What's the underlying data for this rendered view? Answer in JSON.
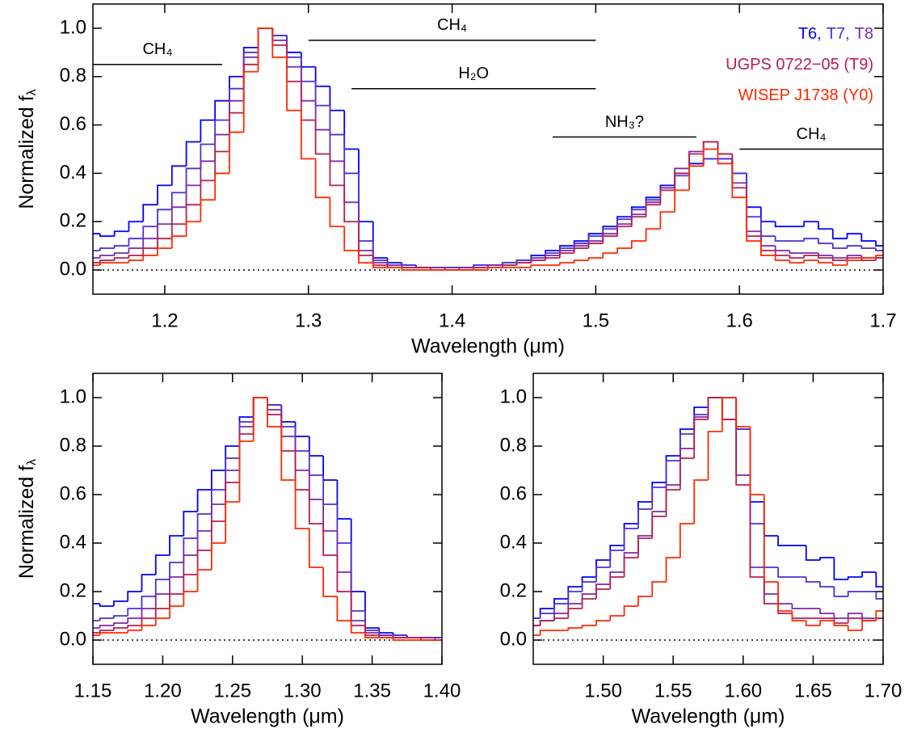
{
  "chart_data": [
    {
      "type": "line",
      "drawstyle": "steps-mid",
      "xlabel": "Wavelength (μm)",
      "ylabel": "Normalized f",
      "ylabel_sub": "λ",
      "xlim": [
        1.15,
        1.7
      ],
      "ylim": [
        -0.1,
        1.1
      ],
      "xticks": [
        1.2,
        1.3,
        1.4,
        1.5,
        1.6,
        1.7
      ],
      "yticks": [
        {
          "value": 0,
          "label": "0.0"
        },
        0.2,
        0.4,
        0.6,
        0.8,
        {
          "value": 1,
          "label": "1.0"
        }
      ],
      "zero_line": true,
      "legend": "upper right",
      "annotations": [
        {
          "text": "CH₄",
          "x": [
            1.15,
            1.24
          ],
          "y": 0.85
        },
        {
          "text": "CH₄",
          "x": [
            1.3,
            1.5
          ],
          "y": 0.95
        },
        {
          "text": "H₂O",
          "x": [
            1.33,
            1.5
          ],
          "y": 0.75
        },
        {
          "text": "NH₃?",
          "x": [
            1.47,
            1.57
          ],
          "y": 0.55
        },
        {
          "text": "CH₄",
          "x": [
            1.6,
            1.7
          ],
          "y": 0.5
        }
      ],
      "x": [
        1.15,
        1.16,
        1.17,
        1.18,
        1.19,
        1.2,
        1.21,
        1.22,
        1.23,
        1.24,
        1.25,
        1.26,
        1.27,
        1.28,
        1.29,
        1.3,
        1.31,
        1.32,
        1.33,
        1.34,
        1.35,
        1.36,
        1.37,
        1.38,
        1.39,
        1.4,
        1.41,
        1.42,
        1.43,
        1.44,
        1.45,
        1.46,
        1.47,
        1.48,
        1.49,
        1.5,
        1.51,
        1.52,
        1.53,
        1.54,
        1.55,
        1.56,
        1.57,
        1.58,
        1.59,
        1.6,
        1.61,
        1.62,
        1.63,
        1.64,
        1.65,
        1.66,
        1.67,
        1.68,
        1.69,
        1.7
      ],
      "series": [
        {
          "name": "T6,",
          "color": "#0000ff",
          "values": [
            0.15,
            0.14,
            0.16,
            0.2,
            0.27,
            0.35,
            0.43,
            0.53,
            0.62,
            0.7,
            0.8,
            0.92,
            1.0,
            0.97,
            0.9,
            0.84,
            0.76,
            0.66,
            0.5,
            0.2,
            0.05,
            0.03,
            0.02,
            0.01,
            0.01,
            0.01,
            0.01,
            0.02,
            0.02,
            0.03,
            0.04,
            0.06,
            0.08,
            0.1,
            0.12,
            0.15,
            0.18,
            0.22,
            0.26,
            0.3,
            0.35,
            0.4,
            0.44,
            0.46,
            0.46,
            0.4,
            0.26,
            0.2,
            0.18,
            0.18,
            0.2,
            0.17,
            0.13,
            0.15,
            0.12,
            0.1
          ]
        },
        {
          "name": "T7,",
          "color": "#4b30d8",
          "values": [
            0.08,
            0.09,
            0.1,
            0.13,
            0.18,
            0.25,
            0.32,
            0.42,
            0.52,
            0.62,
            0.75,
            0.9,
            1.0,
            0.97,
            0.88,
            0.78,
            0.68,
            0.56,
            0.4,
            0.12,
            0.04,
            0.02,
            0.02,
            0.01,
            0.01,
            0.01,
            0.01,
            0.02,
            0.02,
            0.03,
            0.04,
            0.05,
            0.07,
            0.09,
            0.11,
            0.14,
            0.17,
            0.21,
            0.25,
            0.29,
            0.34,
            0.39,
            0.43,
            0.46,
            0.46,
            0.4,
            0.22,
            0.14,
            0.12,
            0.12,
            0.13,
            0.11,
            0.09,
            0.1,
            0.09,
            0.08
          ]
        },
        {
          "name": "T8",
          "color": "#7a2aa8",
          "values": [
            0.05,
            0.06,
            0.07,
            0.09,
            0.13,
            0.19,
            0.26,
            0.35,
            0.45,
            0.56,
            0.7,
            0.88,
            1.0,
            0.95,
            0.84,
            0.7,
            0.58,
            0.45,
            0.28,
            0.08,
            0.03,
            0.02,
            0.01,
            0.01,
            0.01,
            0.0,
            0.01,
            0.01,
            0.02,
            0.02,
            0.03,
            0.04,
            0.06,
            0.08,
            0.1,
            0.12,
            0.15,
            0.19,
            0.23,
            0.28,
            0.34,
            0.42,
            0.49,
            0.53,
            0.48,
            0.36,
            0.16,
            0.1,
            0.08,
            0.07,
            0.07,
            0.06,
            0.05,
            0.06,
            0.05,
            0.05
          ]
        },
        {
          "name": "UGPS 0722−05 (T9)",
          "color": "#b81e4e",
          "values": [
            0.03,
            0.04,
            0.05,
            0.06,
            0.09,
            0.13,
            0.19,
            0.27,
            0.37,
            0.49,
            0.65,
            0.85,
            1.0,
            0.93,
            0.78,
            0.62,
            0.48,
            0.35,
            0.2,
            0.06,
            0.02,
            0.01,
            0.01,
            0.01,
            0.0,
            0.0,
            0.0,
            0.01,
            0.01,
            0.02,
            0.03,
            0.04,
            0.05,
            0.07,
            0.09,
            0.11,
            0.14,
            0.18,
            0.22,
            0.27,
            0.33,
            0.4,
            0.48,
            0.53,
            0.48,
            0.34,
            0.14,
            0.08,
            0.06,
            0.05,
            0.06,
            0.05,
            0.04,
            0.05,
            0.04,
            0.05
          ]
        },
        {
          "name": "WISEP J1738 (Y0)",
          "color": "#ff2a00",
          "values": [
            0.02,
            0.03,
            0.03,
            0.04,
            0.06,
            0.09,
            0.14,
            0.2,
            0.29,
            0.4,
            0.57,
            0.82,
            1.0,
            0.88,
            0.66,
            0.46,
            0.3,
            0.18,
            0.08,
            0.03,
            0.01,
            0.01,
            0.0,
            0.0,
            0.0,
            0.0,
            0.0,
            0.0,
            0.01,
            0.01,
            0.01,
            0.02,
            0.02,
            0.03,
            0.04,
            0.05,
            0.07,
            0.09,
            0.12,
            0.17,
            0.24,
            0.33,
            0.43,
            0.5,
            0.44,
            0.3,
            0.12,
            0.06,
            0.04,
            0.03,
            0.04,
            0.03,
            0.02,
            0.04,
            0.05,
            0.06
          ]
        }
      ]
    },
    {
      "type": "line",
      "drawstyle": "steps-mid",
      "xlabel": "Wavelength (μm)",
      "ylabel": "Normalized f",
      "ylabel_sub": "λ",
      "xlim": [
        1.15,
        1.4
      ],
      "ylim": [
        -0.1,
        1.1
      ],
      "xticks": [
        1.15,
        {
          "value": 1.2,
          "label": "1.20"
        },
        1.25,
        {
          "value": 1.3,
          "label": "1.30"
        },
        1.35,
        {
          "value": 1.4,
          "label": "1.40"
        }
      ],
      "yticks": [
        {
          "value": 0,
          "label": "0.0"
        },
        0.2,
        0.4,
        0.6,
        0.8,
        {
          "value": 1,
          "label": "1.0"
        }
      ],
      "zero_line": true,
      "x": [
        1.15,
        1.16,
        1.17,
        1.18,
        1.19,
        1.2,
        1.21,
        1.22,
        1.23,
        1.24,
        1.25,
        1.26,
        1.27,
        1.28,
        1.29,
        1.3,
        1.31,
        1.32,
        1.33,
        1.34,
        1.35,
        1.36,
        1.37,
        1.38,
        1.39,
        1.4
      ],
      "series": [
        {
          "color": "#0000ff",
          "values": [
            0.15,
            0.14,
            0.16,
            0.2,
            0.27,
            0.35,
            0.43,
            0.53,
            0.62,
            0.7,
            0.8,
            0.92,
            1.0,
            0.97,
            0.9,
            0.84,
            0.76,
            0.66,
            0.5,
            0.2,
            0.05,
            0.03,
            0.02,
            0.01,
            0.01,
            0.01
          ]
        },
        {
          "color": "#4b30d8",
          "values": [
            0.08,
            0.09,
            0.1,
            0.13,
            0.18,
            0.25,
            0.32,
            0.42,
            0.52,
            0.62,
            0.75,
            0.9,
            1.0,
            0.97,
            0.88,
            0.78,
            0.68,
            0.56,
            0.4,
            0.12,
            0.04,
            0.02,
            0.02,
            0.01,
            0.01,
            0.01
          ]
        },
        {
          "color": "#7a2aa8",
          "values": [
            0.05,
            0.06,
            0.07,
            0.09,
            0.13,
            0.19,
            0.26,
            0.35,
            0.45,
            0.56,
            0.7,
            0.88,
            1.0,
            0.95,
            0.84,
            0.7,
            0.58,
            0.45,
            0.28,
            0.08,
            0.03,
            0.02,
            0.01,
            0.01,
            0.01,
            0.0
          ]
        },
        {
          "color": "#b81e4e",
          "values": [
            0.03,
            0.04,
            0.05,
            0.06,
            0.09,
            0.13,
            0.19,
            0.27,
            0.37,
            0.49,
            0.65,
            0.85,
            1.0,
            0.93,
            0.78,
            0.62,
            0.48,
            0.35,
            0.2,
            0.06,
            0.02,
            0.01,
            0.01,
            0.01,
            0.0,
            0.0
          ]
        },
        {
          "color": "#ff2a00",
          "values": [
            0.02,
            0.03,
            0.03,
            0.04,
            0.06,
            0.09,
            0.14,
            0.2,
            0.29,
            0.4,
            0.57,
            0.82,
            1.0,
            0.88,
            0.66,
            0.46,
            0.3,
            0.18,
            0.08,
            0.03,
            0.01,
            0.01,
            0.0,
            0.0,
            0.0,
            0.0
          ]
        }
      ]
    },
    {
      "type": "line",
      "drawstyle": "steps-mid",
      "xlabel": "Wavelength (μm)",
      "xlim": [
        1.45,
        1.7
      ],
      "ylim": [
        -0.1,
        1.1
      ],
      "xticks": [
        {
          "value": 1.5,
          "label": "1.50"
        },
        1.55,
        {
          "value": 1.6,
          "label": "1.60"
        },
        1.65,
        {
          "value": 1.7,
          "label": "1.70"
        }
      ],
      "yticks": [
        {
          "value": 0,
          "label": "0.0"
        },
        0.2,
        0.4,
        0.6,
        0.8,
        {
          "value": 1,
          "label": "1.0"
        }
      ],
      "zero_line": true,
      "x": [
        1.45,
        1.46,
        1.47,
        1.48,
        1.49,
        1.5,
        1.51,
        1.52,
        1.53,
        1.54,
        1.55,
        1.56,
        1.57,
        1.58,
        1.59,
        1.6,
        1.61,
        1.62,
        1.63,
        1.64,
        1.65,
        1.66,
        1.67,
        1.68,
        1.69,
        1.7
      ],
      "series": [
        {
          "color": "#0000ff",
          "values": [
            0.09,
            0.13,
            0.17,
            0.22,
            0.26,
            0.33,
            0.39,
            0.48,
            0.57,
            0.65,
            0.76,
            0.87,
            0.96,
            1.0,
            1.0,
            0.87,
            0.57,
            0.43,
            0.39,
            0.39,
            0.33,
            0.34,
            0.25,
            0.26,
            0.28,
            0.22
          ]
        },
        {
          "color": "#4b30d8",
          "values": [
            0.09,
            0.11,
            0.15,
            0.2,
            0.24,
            0.3,
            0.37,
            0.46,
            0.54,
            0.63,
            0.74,
            0.85,
            0.93,
            1.0,
            1.0,
            0.87,
            0.48,
            0.3,
            0.26,
            0.26,
            0.24,
            0.22,
            0.18,
            0.2,
            0.2,
            0.17
          ]
        },
        {
          "color": "#7a2aa8",
          "values": [
            0.06,
            0.08,
            0.11,
            0.15,
            0.19,
            0.23,
            0.28,
            0.36,
            0.43,
            0.53,
            0.64,
            0.79,
            0.92,
            1.0,
            0.91,
            0.68,
            0.3,
            0.19,
            0.15,
            0.13,
            0.13,
            0.11,
            0.09,
            0.11,
            0.09,
            0.09
          ]
        },
        {
          "color": "#b81e4e",
          "values": [
            0.06,
            0.08,
            0.09,
            0.13,
            0.17,
            0.21,
            0.26,
            0.34,
            0.42,
            0.51,
            0.62,
            0.75,
            0.91,
            1.0,
            0.91,
            0.64,
            0.26,
            0.15,
            0.11,
            0.09,
            0.09,
            0.09,
            0.07,
            0.09,
            0.08,
            0.09
          ]
        },
        {
          "color": "#ff2a00",
          "values": [
            0.02,
            0.04,
            0.04,
            0.05,
            0.06,
            0.08,
            0.1,
            0.14,
            0.18,
            0.24,
            0.34,
            0.48,
            0.66,
            0.86,
            1.0,
            0.88,
            0.6,
            0.24,
            0.12,
            0.08,
            0.06,
            0.08,
            0.06,
            0.04,
            0.08,
            0.12
          ]
        }
      ]
    }
  ]
}
